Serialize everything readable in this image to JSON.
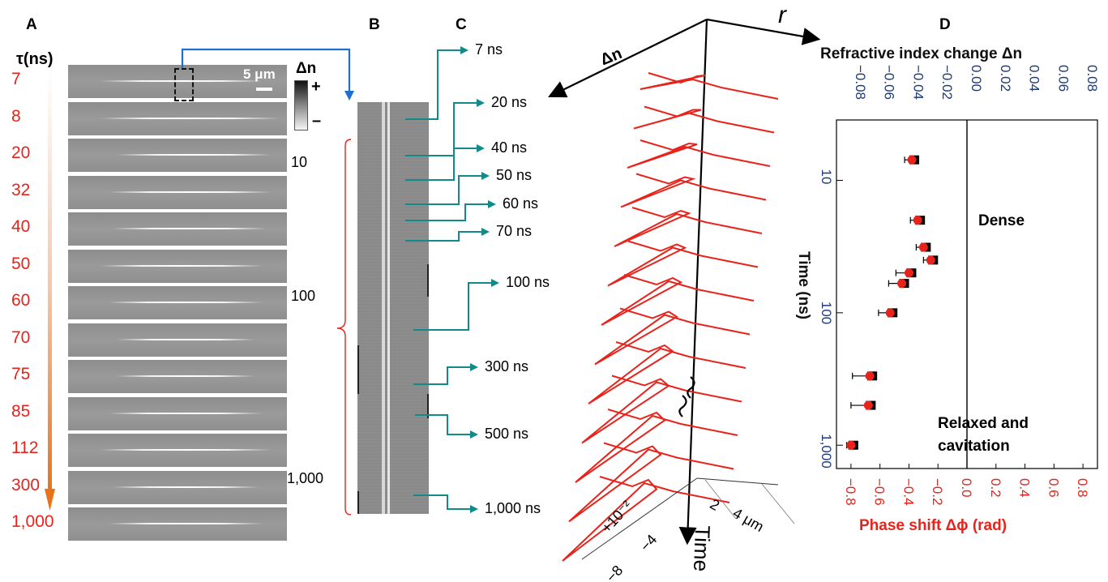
{
  "panel_labels": {
    "a": "A",
    "b": "B",
    "c": "C",
    "d": "D"
  },
  "panel_a": {
    "tau_header": "τ(ns)",
    "tau_values": [
      "7",
      "8",
      "20",
      "32",
      "40",
      "50",
      "60",
      "70",
      "75",
      "85",
      "112",
      "300",
      "1,000"
    ],
    "scale_bar": "5 μm",
    "delta_n_label": "Δn",
    "colorbar_plus": "+",
    "colorbar_minus": "–",
    "side_ticks": [
      "10",
      "100",
      "1,000"
    ],
    "colors": {
      "tau_text": "#e8231b",
      "arrow": "#1f6fd1"
    }
  },
  "panel_b": {
    "times": [
      "7 ns",
      "20 ns",
      "40 ns",
      "50 ns",
      "60 ns",
      "70 ns",
      "100 ns",
      "300 ns",
      "500 ns",
      "1,000 ns"
    ],
    "colors": {
      "arrow": "#138a8a"
    }
  },
  "panel_c": {
    "axis_delta_n": "Δn",
    "axis_r": "r",
    "axis_time": "Time",
    "bottom_ticks": [
      "+10⁻²",
      "−4",
      "−8",
      "2",
      "4 μm"
    ],
    "colors": {
      "curves": "#e8231b"
    }
  },
  "chart_data": {
    "type": "scatter",
    "title": "",
    "top_axis_label": "Refractive index change Δn",
    "top_ticks": [
      "−0.08",
      "−0.06",
      "−0.04",
      "−0.02",
      "0.00",
      "0.02",
      "0.04",
      "0.06",
      "0.08"
    ],
    "bottom_axis_label": "Phase shift Δϕ (rad)",
    "bottom_ticks": [
      "−0.8",
      "−0.6",
      "−0.4",
      "−0.2",
      "0.0",
      "0.2",
      "0.4",
      "0.6",
      "0.8"
    ],
    "ylabel": "Time (ns)",
    "y_ticks": [
      "10",
      "100",
      "1,000"
    ],
    "y_scale": "log",
    "ylim": [
      3.5,
      1500
    ],
    "xlim": [
      -0.9,
      0.9
    ],
    "annotations": [
      "Dense",
      "Relaxed and cavitation"
    ],
    "series": [
      {
        "color": "#e8231b",
        "points": [
          {
            "t": 7,
            "x": -0.38,
            "err": 0.05
          },
          {
            "t": 20,
            "x": -0.34,
            "err": 0.05
          },
          {
            "t": 32,
            "x": -0.3,
            "err": 0.05
          },
          {
            "t": 40,
            "x": -0.25,
            "err": 0.05
          },
          {
            "t": 50,
            "x": -0.4,
            "err": 0.09
          },
          {
            "t": 60,
            "x": -0.45,
            "err": 0.09
          },
          {
            "t": 100,
            "x": -0.53,
            "err": 0.08
          },
          {
            "t": 300,
            "x": -0.67,
            "err": 0.12
          },
          {
            "t": 500,
            "x": -0.68,
            "err": 0.12
          },
          {
            "t": 1000,
            "x": -0.8,
            "err": 0.03
          }
        ]
      }
    ],
    "marker_shadow_color": "#000000",
    "zero_line": true
  }
}
